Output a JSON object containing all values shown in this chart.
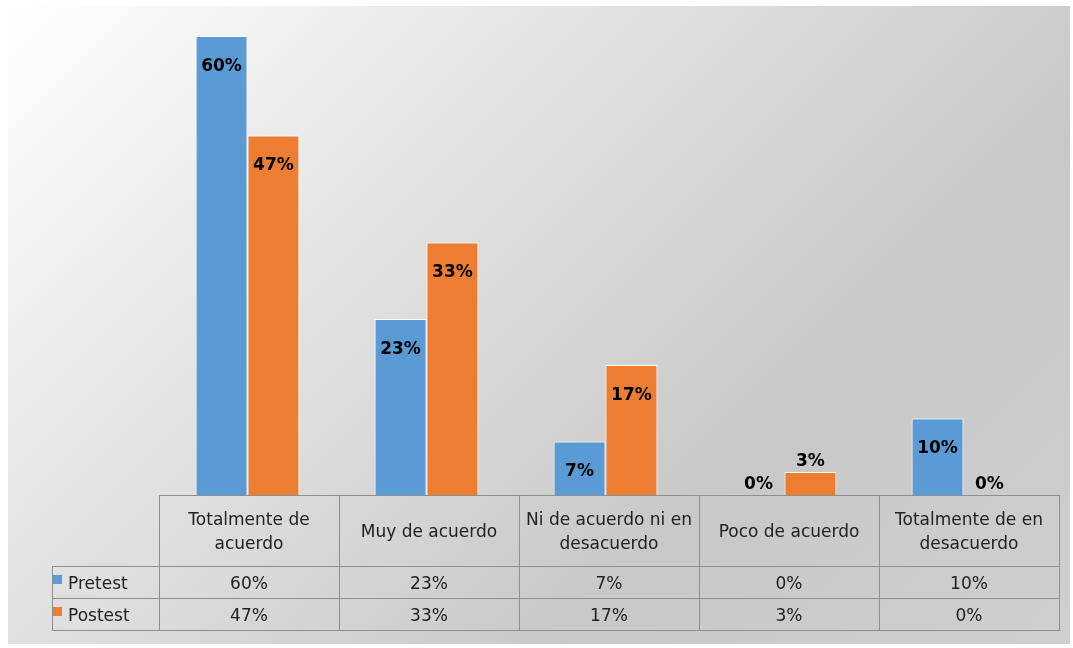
{
  "chart_data": {
    "type": "bar",
    "categories": [
      "Totalmente de acuerdo",
      "Muy de acuerdo",
      "Ni de acuerdo ni en desacuerdo",
      "Poco de acuerdo",
      "Totalmente de en desacuerdo"
    ],
    "series": [
      {
        "name": "Pretest",
        "color": "#5b9bd5",
        "values": [
          60,
          23,
          7,
          0,
          10
        ],
        "value_labels": [
          "60%",
          "23%",
          "7%",
          "0%",
          "10%"
        ]
      },
      {
        "name": "Postest",
        "color": "#ed7d31",
        "values": [
          47,
          33,
          17,
          3,
          0
        ],
        "value_labels": [
          "47%",
          "33%",
          "17%",
          "3%",
          "0%"
        ]
      }
    ],
    "legend": "bottom left"
  }
}
